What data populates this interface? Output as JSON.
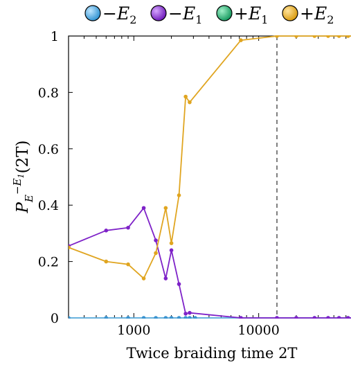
{
  "chart_data": {
    "type": "line",
    "xlabel": "Twice braiding time 2T",
    "ylabel": {
      "base": "P",
      "sub": "E",
      "sup": "−E",
      "sup_sub": "1",
      "arg": "(2T)"
    },
    "x_scale": "log",
    "xlim": [
      300,
      60000
    ],
    "ylim": [
      0,
      1
    ],
    "x_ticks": [
      1000,
      10000
    ],
    "x_tick_labels": [
      "1000",
      "10000"
    ],
    "y_ticks": [
      0,
      0.2,
      0.4,
      0.6,
      0.8,
      1
    ],
    "y_tick_labels": [
      "0",
      "0.2",
      "0.4",
      "0.6",
      "0.8",
      "1"
    ],
    "vline_x": 14000,
    "grid": false,
    "legend_position": "top",
    "series": [
      {
        "name": "−E2",
        "label_sign": "−",
        "label_letter": "E",
        "label_sub": "2",
        "color": "#5aaee0",
        "marker_color": "#3a93cf",
        "x": [
          300,
          600,
          900,
          1200,
          1500,
          1800,
          2000,
          2300,
          2600,
          2800,
          3100,
          7200,
          14000,
          20000,
          28000,
          36000,
          44000,
          52000,
          60000
        ],
        "y": [
          0,
          0,
          0,
          0,
          0,
          0,
          0,
          0,
          0,
          0,
          0,
          0,
          0,
          0,
          0,
          0,
          0,
          0,
          0
        ]
      },
      {
        "name": "−E1",
        "label_sign": "−",
        "label_letter": "E",
        "label_sub": "1",
        "color": "#7e22c8",
        "marker_color": "#7e22c8",
        "x": [
          300,
          600,
          900,
          1200,
          1500,
          1800,
          2000,
          2300,
          2600,
          2800,
          7200,
          14000,
          20000,
          28000,
          36000,
          44000,
          52000,
          60000
        ],
        "y": [
          0.255,
          0.31,
          0.32,
          0.39,
          0.275,
          0.14,
          0.24,
          0.12,
          0.015,
          0.018,
          0,
          0,
          0,
          0,
          0,
          0,
          0,
          0
        ]
      },
      {
        "name": "+E1",
        "label_sign": "+",
        "label_letter": "E",
        "label_sub": "1",
        "color": "#1aa96a",
        "marker_color": "#1aa96a",
        "x": [],
        "y": []
      },
      {
        "name": "+E2",
        "label_sign": "+",
        "label_letter": "E",
        "label_sub": "2",
        "color": "#e0a520",
        "marker_color": "#e0a520",
        "x": [
          300,
          600,
          900,
          1200,
          1500,
          1800,
          2000,
          2300,
          2600,
          2800,
          7200,
          14000,
          20000,
          28000,
          36000,
          44000,
          52000,
          60000
        ],
        "y": [
          0.25,
          0.2,
          0.19,
          0.14,
          0.23,
          0.39,
          0.265,
          0.435,
          0.785,
          0.765,
          0.985,
          1,
          1,
          1,
          1,
          1,
          1,
          1
        ]
      }
    ]
  }
}
